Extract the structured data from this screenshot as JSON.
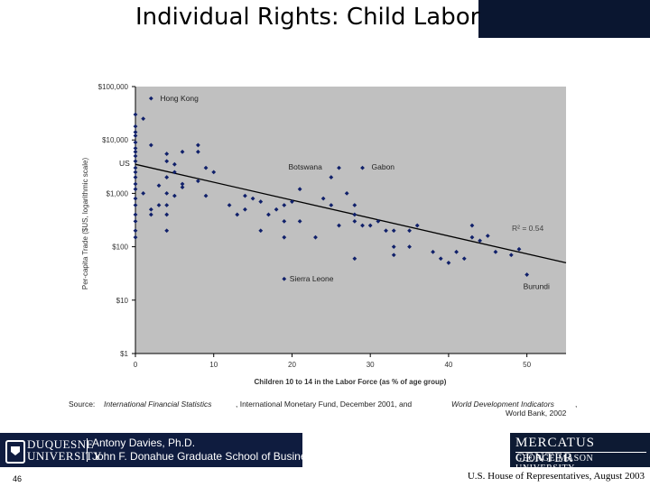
{
  "title": "Individual Rights: Child Labor",
  "chart_data": {
    "type": "scatter",
    "xlabel": "Children 10 to 14 in the Labor Force (as % of age group)",
    "ylabel": "Per-capita Trade ($US, logarithmic scale)",
    "y_scale": "log",
    "xlim": [
      0,
      55
    ],
    "ylim": [
      1,
      100000
    ],
    "x_ticks": [
      "0",
      "10",
      "20",
      "30",
      "40",
      "50"
    ],
    "x_tick_values": [
      0,
      10,
      20,
      30,
      40,
      50
    ],
    "y_ticks": [
      "$100,000",
      "$10,000",
      "$1,000",
      "$100",
      "$10",
      "$1"
    ],
    "y_tick_values": [
      100000,
      10000,
      1000,
      100,
      10,
      1
    ],
    "grid": false,
    "trendline": {
      "x": [
        0,
        55
      ],
      "y": [
        3500,
        50
      ]
    },
    "r_squared_label": "R² = 0.54",
    "annotations": [
      {
        "label": "Hong Kong",
        "x": 2,
        "y": 60000
      },
      {
        "label": "US",
        "x": 0,
        "y": 3500
      },
      {
        "label": "Botswana",
        "x": 26,
        "y": 3000
      },
      {
        "label": "Gabon",
        "x": 29,
        "y": 3000
      },
      {
        "label": "Sierra Leone",
        "x": 19,
        "y": 25
      },
      {
        "label": "Burundi",
        "x": 50,
        "y": 30
      }
    ],
    "points": [
      [
        2,
        60000
      ],
      [
        0,
        30000
      ],
      [
        1,
        25000
      ],
      [
        0,
        18000
      ],
      [
        0,
        14000
      ],
      [
        0,
        12000
      ],
      [
        0,
        9000
      ],
      [
        0,
        7000
      ],
      [
        0,
        6000
      ],
      [
        0,
        5000
      ],
      [
        0,
        4000
      ],
      [
        0,
        3000
      ],
      [
        0,
        2500
      ],
      [
        0,
        2000
      ],
      [
        0,
        1500
      ],
      [
        0,
        1200
      ],
      [
        0,
        800
      ],
      [
        0,
        600
      ],
      [
        0,
        400
      ],
      [
        0,
        300
      ],
      [
        0,
        200
      ],
      [
        0,
        150
      ],
      [
        2,
        8000
      ],
      [
        4,
        5500
      ],
      [
        4,
        4000
      ],
      [
        5,
        3500
      ],
      [
        6,
        6000
      ],
      [
        8,
        8000
      ],
      [
        8,
        6000
      ],
      [
        9,
        3000
      ],
      [
        10,
        2500
      ],
      [
        5,
        2500
      ],
      [
        4,
        2000
      ],
      [
        6,
        1500
      ],
      [
        8,
        1700
      ],
      [
        3,
        1400
      ],
      [
        4,
        1000
      ],
      [
        5,
        900
      ],
      [
        6,
        1300
      ],
      [
        9,
        900
      ],
      [
        3,
        600
      ],
      [
        4,
        600
      ],
      [
        4,
        400
      ],
      [
        4,
        200
      ],
      [
        2,
        400
      ],
      [
        1,
        1000
      ],
      [
        2,
        500
      ],
      [
        12,
        600
      ],
      [
        13,
        400
      ],
      [
        14,
        500
      ],
      [
        14,
        900
      ],
      [
        15,
        800
      ],
      [
        16,
        700
      ],
      [
        17,
        400
      ],
      [
        16,
        200
      ],
      [
        18,
        500
      ],
      [
        19,
        600
      ],
      [
        19,
        300
      ],
      [
        19,
        150
      ],
      [
        20,
        700
      ],
      [
        21,
        1200
      ],
      [
        21,
        300
      ],
      [
        23,
        150
      ],
      [
        24,
        800
      ],
      [
        25,
        2000
      ],
      [
        26,
        3000
      ],
      [
        25,
        600
      ],
      [
        26,
        250
      ],
      [
        27,
        1000
      ],
      [
        28,
        600
      ],
      [
        28,
        400
      ],
      [
        28,
        300
      ],
      [
        29,
        250
      ],
      [
        30,
        250
      ],
      [
        31,
        300
      ],
      [
        32,
        200
      ],
      [
        28,
        60
      ],
      [
        33,
        200
      ],
      [
        33,
        100
      ],
      [
        33,
        70
      ],
      [
        35,
        100
      ],
      [
        35,
        200
      ],
      [
        36,
        250
      ],
      [
        38,
        80
      ],
      [
        39,
        60
      ],
      [
        40,
        50
      ],
      [
        41,
        80
      ],
      [
        42,
        60
      ],
      [
        43,
        250
      ],
      [
        43,
        150
      ],
      [
        44,
        130
      ],
      [
        45,
        160
      ],
      [
        46,
        80
      ],
      [
        48,
        70
      ],
      [
        49,
        90
      ],
      [
        29,
        3000
      ],
      [
        19,
        25
      ],
      [
        50,
        30
      ]
    ]
  },
  "source": {
    "prefix": "Source:",
    "ifs": "International Financial Statistics",
    "imf": ", International Monetary Fund, December 2001, and",
    "wdi": "World Development Indicators",
    "comma": ",",
    "wb": "World Bank, 2002"
  },
  "footer": {
    "university_line1": "DUQUESNE",
    "university_line2": "UNIVERSITY",
    "person_line1": "Antony Davies, Ph.D.",
    "person_line2": "John F. Donahue Graduate School of Business",
    "mercatus_line1": "MERCATUS CENTER",
    "mercatus_line2": "GEORGE MASON UNIVERSITY",
    "page_number": "46",
    "credit": "U.S. House of Representatives, August 2003"
  }
}
